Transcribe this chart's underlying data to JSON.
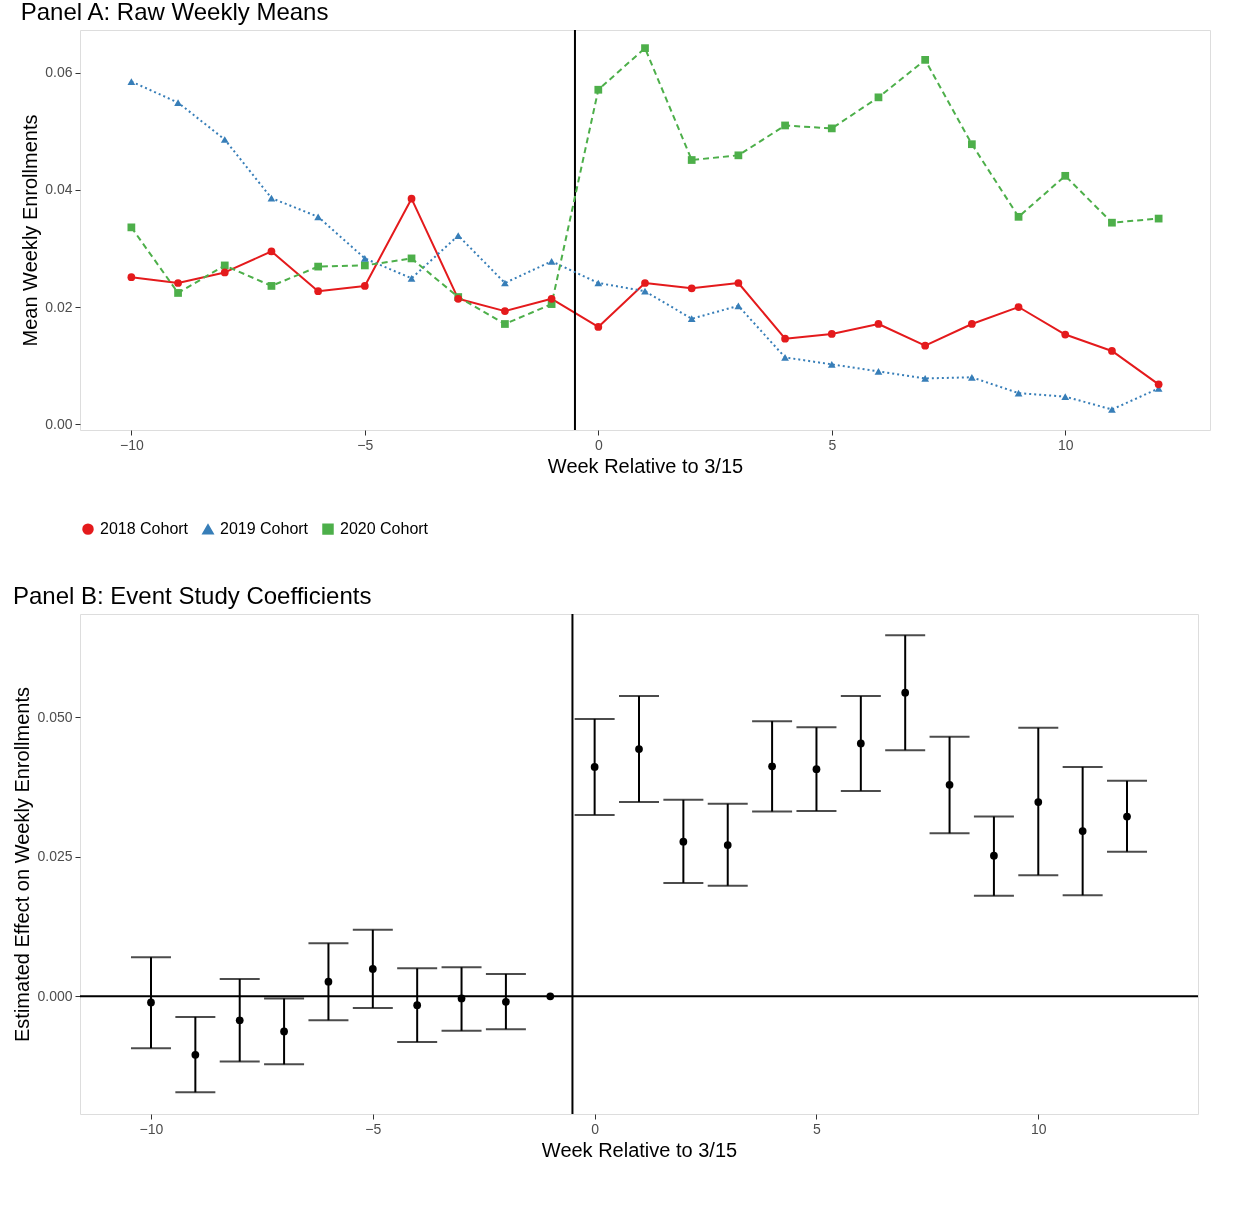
{
  "chart_data": [
    {
      "type": "line",
      "title": "Panel A: Raw Weekly Means",
      "xlabel": "Week Relative to 3/15",
      "ylabel": "Mean Weekly Enrollments",
      "x": [
        -10,
        -9,
        -8,
        -7,
        -6,
        -5,
        -4,
        -3,
        -2,
        -1,
        0,
        1,
        2,
        3,
        4,
        5,
        6,
        7,
        8,
        9,
        10,
        11,
        12
      ],
      "series": [
        {
          "name": "2018 Cohort",
          "color": "#e41a1c",
          "marker": "circle",
          "line_style": "solid",
          "values": [
            0.0251,
            0.0241,
            0.0259,
            0.0295,
            0.0227,
            0.0236,
            0.0385,
            0.0214,
            0.0193,
            0.0214,
            0.0166,
            0.0241,
            0.0232,
            0.0241,
            0.0146,
            0.0154,
            0.0171,
            0.0134,
            0.0171,
            0.02,
            0.0153,
            0.0125,
            0.0068
          ]
        },
        {
          "name": "2019 Cohort",
          "color": "#377eb8",
          "marker": "triangle",
          "line_style": "dotted",
          "values": [
            0.0585,
            0.0549,
            0.0486,
            0.0386,
            0.0354,
            0.0283,
            0.0249,
            0.0322,
            0.0241,
            0.0278,
            0.0241,
            0.0227,
            0.018,
            0.0202,
            0.0114,
            0.0102,
            0.009,
            0.0078,
            0.008,
            0.0053,
            0.0047,
            0.0025,
            0.0061
          ]
        },
        {
          "name": "2020 Cohort",
          "color": "#4daf4a",
          "marker": "square",
          "line_style": "dashed",
          "values": [
            0.0336,
            0.0224,
            0.0271,
            0.0236,
            0.0269,
            0.0271,
            0.0283,
            0.0217,
            0.0171,
            0.0205,
            0.0571,
            0.0642,
            0.0451,
            0.0459,
            0.051,
            0.0505,
            0.0558,
            0.0622,
            0.0478,
            0.0354,
            0.0424,
            0.0344,
            0.0351
          ]
        }
      ],
      "xlim": [
        -11.1,
        13.1
      ],
      "xticks": [
        -10,
        -5,
        0,
        5,
        10
      ],
      "ylim": [
        -0.001,
        0.0673
      ],
      "yticks": [
        {
          "value": 0,
          "label": "0.00"
        },
        {
          "value": 0.02,
          "label": "0.02"
        },
        {
          "value": 0.04,
          "label": "0.04"
        },
        {
          "value": 0.06,
          "label": "0.06"
        }
      ],
      "ref_lines": [
        {
          "axis": "x",
          "value": -0.5,
          "color": "#000000"
        }
      ],
      "grid": false,
      "legend": "bottom"
    },
    {
      "type": "scatter",
      "title": "Panel B: Event Study Coefficients",
      "xlabel": "Week Relative to 3/15",
      "ylabel": "Estimated Effect on Weekly Enrollments",
      "x": [
        -10,
        -9,
        -8,
        -7,
        -6,
        -5,
        -4,
        -3,
        -2,
        -1,
        0,
        1,
        2,
        3,
        4,
        5,
        6,
        7,
        8,
        9,
        10,
        11,
        12
      ],
      "series": [
        {
          "color": "#000000",
          "marker": "circle",
          "values": [
            -0.0011,
            -0.0105,
            -0.0043,
            -0.0063,
            0.0026,
            0.0049,
            -0.0016,
            -0.0004,
            -0.001,
            0,
            0.0411,
            0.0443,
            0.0277,
            0.0271,
            0.0412,
            0.0407,
            0.0453,
            0.0544,
            0.0379,
            0.0252,
            0.0348,
            0.0296,
            0.0322
          ],
          "errors": [
            [
              -0.0093,
              0.007
            ],
            [
              -0.0172,
              -0.0037
            ],
            [
              -0.0117,
              0.0031
            ],
            [
              -0.0122,
              -0.0004
            ],
            [
              -0.0043,
              0.0095
            ],
            [
              -0.0021,
              0.0119
            ],
            [
              -0.0082,
              0.005
            ],
            [
              -0.0062,
              0.0052
            ],
            [
              -0.0059,
              0.004
            ],
            null,
            [
              0.0325,
              0.0497
            ],
            [
              0.0348,
              0.0538
            ],
            [
              0.0203,
              0.0352
            ],
            [
              0.0198,
              0.0345
            ],
            [
              0.0331,
              0.0493
            ],
            [
              0.0332,
              0.0482
            ],
            [
              0.0368,
              0.0538
            ],
            [
              0.0441,
              0.0647
            ],
            [
              0.0292,
              0.0465
            ],
            [
              0.018,
              0.0322
            ],
            [
              0.0217,
              0.0481
            ],
            [
              0.0181,
              0.0411
            ],
            [
              0.0259,
              0.0386
            ]
          ]
        }
      ],
      "xlim": [
        -11.6,
        13.6
      ],
      "xticks": [
        -10,
        -5,
        0,
        5,
        10
      ],
      "ylim": [
        -0.0211,
        0.0685
      ],
      "yticks": [
        {
          "value": 0,
          "label": "0.000"
        },
        {
          "value": 0.025,
          "label": "0.025"
        },
        {
          "value": 0.05,
          "label": "0.050"
        }
      ],
      "ref_lines": [
        {
          "axis": "x",
          "value": -0.5,
          "color": "#000000"
        },
        {
          "axis": "y",
          "value": 0,
          "color": "#000000"
        }
      ],
      "grid": false
    }
  ]
}
